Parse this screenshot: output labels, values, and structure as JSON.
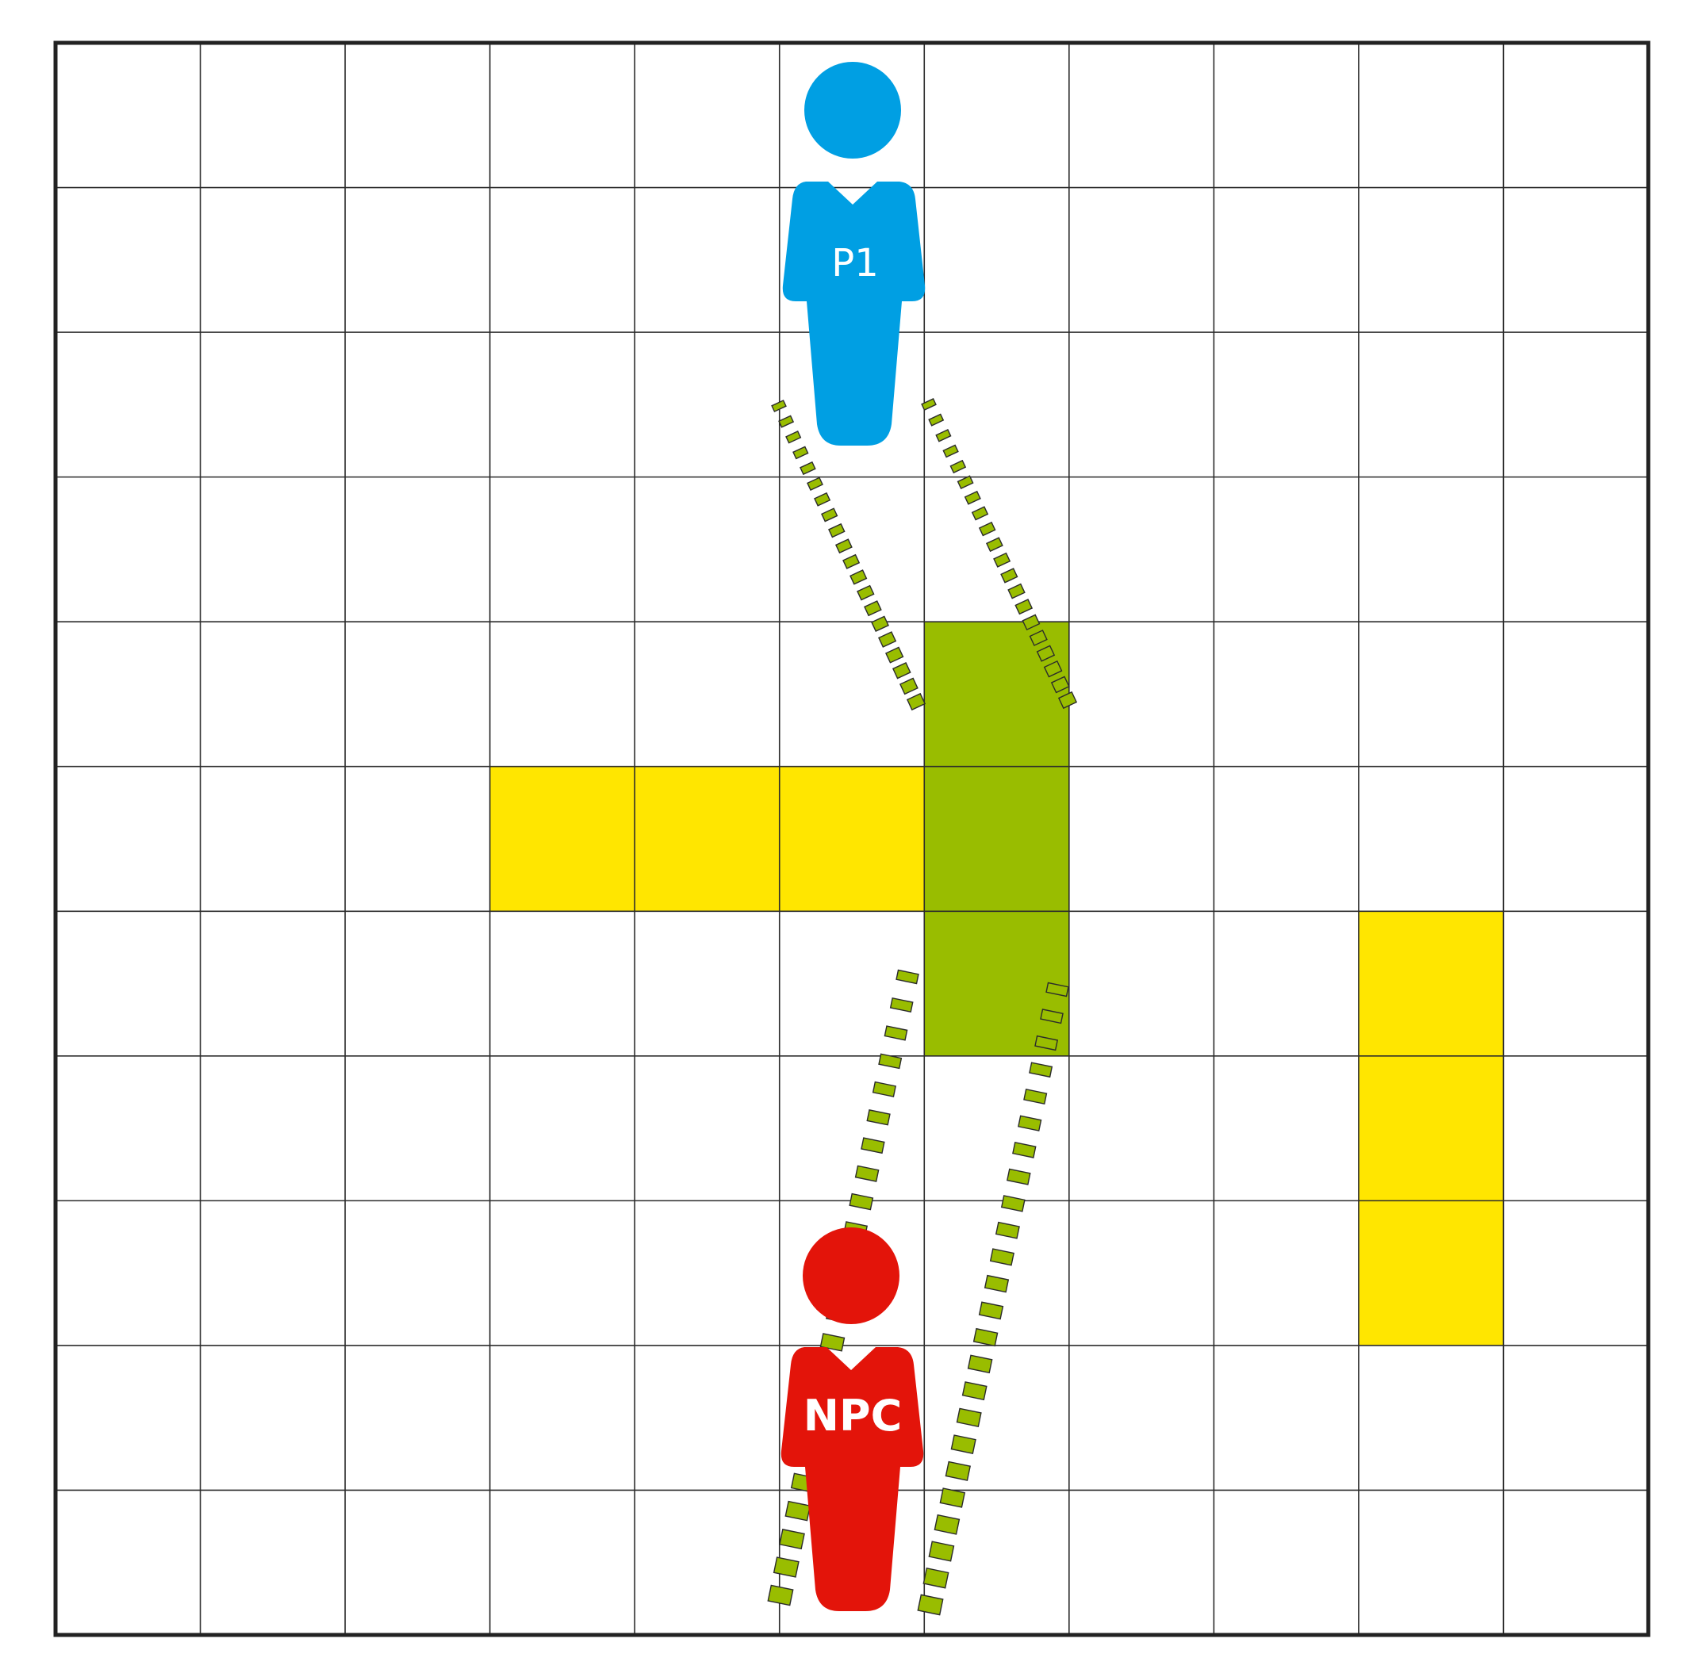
{
  "board": {
    "rows": 11,
    "cols": 11,
    "colors": {
      "background": "#ffffff",
      "grid_line": "#2b2b2b",
      "border": "#222222",
      "yellow_cell": "#ffe600",
      "green_cell": "#99bd00",
      "dash_fill": "#99bd00",
      "dash_stroke": "#2b2b2b"
    },
    "yellow_cells": [
      {
        "row": 5,
        "col": 3
      },
      {
        "row": 5,
        "col": 4
      },
      {
        "row": 5,
        "col": 5
      },
      {
        "row": 6,
        "col": 9
      },
      {
        "row": 7,
        "col": 9
      },
      {
        "row": 8,
        "col": 9
      }
    ],
    "green_cells": [
      {
        "row": 4,
        "col": 6
      },
      {
        "row": 5,
        "col": 6
      },
      {
        "row": 6,
        "col": 6
      }
    ]
  },
  "tokens": {
    "p1": {
      "label": "P1",
      "color": "#009fe3",
      "col": 5,
      "row_span": [
        0,
        2
      ]
    },
    "npc": {
      "label": "NPC",
      "color": "#e3140a",
      "col": 5,
      "row_span": [
        8,
        10
      ]
    }
  },
  "sightlines": {
    "p1_cone": {
      "from": "P1",
      "icon": "dotted-sightline"
    },
    "npc_cone": {
      "from": "NPC",
      "icon": "dotted-sightline"
    }
  }
}
